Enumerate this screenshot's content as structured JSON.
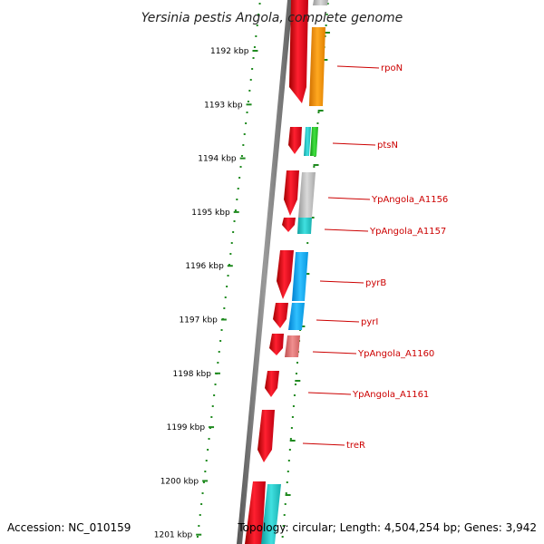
{
  "title": "Yersinia pestis Angola, complete genome",
  "footer": {
    "accession": "Accession: NC_010159",
    "topology": "Topology: circular; Length: 4,504,254 bp; Genes: 3,942"
  },
  "colors": {
    "backbone": "#7a7a7a",
    "dots": "#1f8a1f",
    "gene_label": "#cc0000",
    "forward_gene": "#e8001c",
    "orange": "#ff9a00",
    "gray": "#c4c4c4",
    "cyan": "#1ec8c8",
    "blue": "#1aaaf0",
    "green": "#2ec82e",
    "pink": "#e87878"
  },
  "ticks": [
    "1192 kbp",
    "1193 kbp",
    "1194 kbp",
    "1195 kbp",
    "1196 kbp",
    "1197 kbp",
    "1198 kbp",
    "1199 kbp",
    "1200 kbp",
    "1201 kbp"
  ],
  "genes": [
    {
      "label": "rpoN",
      "color": "orange"
    },
    {
      "label": "ptsN",
      "color": "cyan"
    },
    {
      "label": "YpAngola_A1156",
      "color": "gray"
    },
    {
      "label": "YpAngola_A1157",
      "color": "cyan"
    },
    {
      "label": "pyrB",
      "color": "blue"
    },
    {
      "label": "pyrI",
      "color": "blue"
    },
    {
      "label": "YpAngola_A1160",
      "color": "pink"
    },
    {
      "label": "YpAngola_A1161",
      "color": "forward_gene"
    },
    {
      "label": "treR",
      "color": "forward_gene"
    }
  ]
}
